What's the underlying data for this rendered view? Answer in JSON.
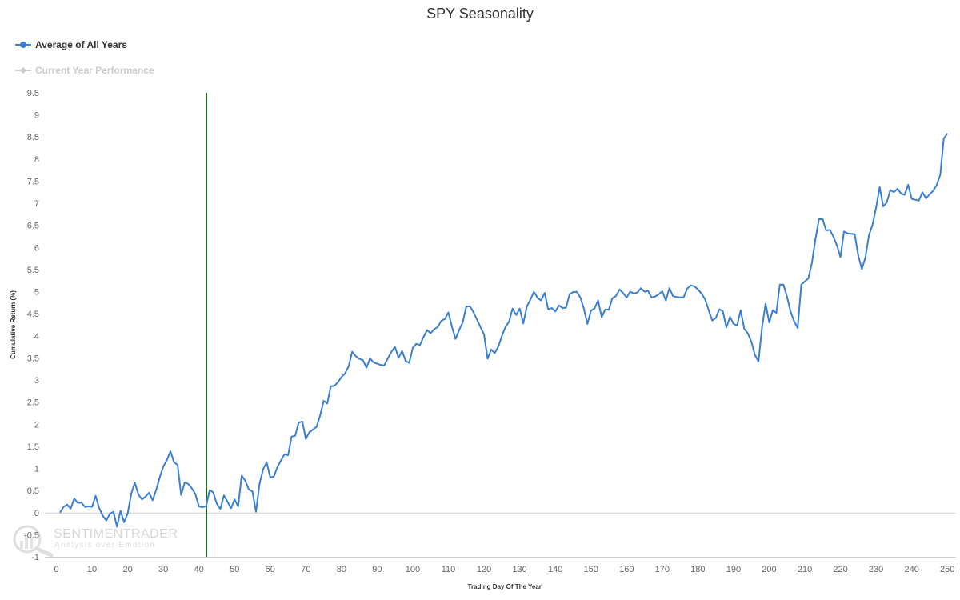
{
  "chart_data": {
    "type": "line",
    "title": "SPY Seasonality",
    "xlabel": "Trading Day Of The Year",
    "ylabel": "Cumulative Return (%)",
    "xlim": [
      0,
      252
    ],
    "ylim": [
      -1,
      9.5
    ],
    "x_ticks": [
      0,
      10,
      20,
      30,
      40,
      50,
      60,
      70,
      80,
      90,
      100,
      110,
      120,
      130,
      140,
      150,
      160,
      170,
      180,
      190,
      200,
      210,
      220,
      230,
      240,
      250
    ],
    "y_ticks": [
      -1,
      -0.5,
      0,
      0.5,
      1,
      1.5,
      2,
      2.5,
      3,
      3.5,
      4,
      4.5,
      5,
      5.5,
      6,
      6.5,
      7,
      7.5,
      8,
      8.5,
      9,
      9.5
    ],
    "y_tick_labels": [
      "-1",
      "-0.5",
      "0",
      "0.5",
      "1",
      "1.5",
      "2",
      "2.5",
      "3",
      "3.5",
      "4",
      "4.5",
      "5",
      "5.5",
      "6",
      "6.5",
      "7",
      "7.5",
      "8",
      "8.5",
      "9",
      "9.5"
    ],
    "current_day_marker": 42,
    "legend_placement": "top-left",
    "grid": false,
    "series": [
      {
        "name": "Average of All Years",
        "color": "#3a7fd0",
        "x_start": 1,
        "values": [
          0.0,
          0.13,
          0.18,
          0.09,
          0.32,
          0.22,
          0.23,
          0.13,
          0.14,
          0.13,
          0.38,
          0.1,
          -0.07,
          -0.18,
          -0.03,
          0.02,
          -0.32,
          0.04,
          -0.22,
          -0.02,
          0.43,
          0.68,
          0.41,
          0.3,
          0.36,
          0.45,
          0.28,
          0.51,
          0.8,
          1.04,
          1.19,
          1.39,
          1.14,
          1.08,
          0.4,
          0.68,
          0.65,
          0.55,
          0.42,
          0.14,
          0.12,
          0.15,
          0.51,
          0.46,
          0.2,
          0.08,
          0.39,
          0.25,
          0.1,
          0.3,
          0.14,
          0.84,
          0.72,
          0.52,
          0.48,
          0.02,
          0.65,
          0.98,
          1.14,
          0.8,
          0.81,
          1.03,
          1.18,
          1.32,
          1.3,
          1.72,
          1.74,
          2.04,
          2.06,
          1.67,
          1.82,
          1.88,
          1.94,
          2.2,
          2.53,
          2.47,
          2.86,
          2.87,
          2.95,
          3.07,
          3.15,
          3.31,
          3.64,
          3.54,
          3.48,
          3.45,
          3.28,
          3.49,
          3.4,
          3.37,
          3.34,
          3.33,
          3.49,
          3.64,
          3.75,
          3.5,
          3.66,
          3.43,
          3.39,
          3.73,
          3.82,
          3.79,
          3.97,
          4.13,
          4.06,
          4.15,
          4.2,
          4.34,
          4.38,
          4.53,
          4.2,
          3.93,
          4.13,
          4.3,
          4.66,
          4.67,
          4.54,
          4.37,
          4.2,
          4.03,
          3.48,
          3.69,
          3.61,
          3.76,
          4.0,
          4.2,
          4.32,
          4.62,
          4.47,
          4.62,
          4.28,
          4.66,
          4.82,
          5.0,
          4.86,
          4.8,
          4.97,
          4.6,
          4.63,
          4.55,
          4.69,
          4.63,
          4.64,
          4.94,
          4.99,
          5.0,
          4.87,
          4.62,
          4.27,
          4.57,
          4.62,
          4.8,
          4.42,
          4.6,
          4.59,
          4.85,
          4.9,
          5.05,
          4.97,
          4.87,
          5.0,
          4.96,
          4.98,
          5.08,
          5.0,
          5.02,
          4.87,
          4.89,
          4.94,
          5.01,
          4.8,
          5.08,
          4.9,
          4.88,
          4.87,
          4.87,
          5.07,
          5.14,
          5.12,
          5.05,
          4.96,
          4.83,
          4.59,
          4.35,
          4.4,
          4.6,
          4.56,
          4.19,
          4.43,
          4.27,
          4.24,
          4.58,
          4.16,
          4.06,
          3.87,
          3.57,
          3.42,
          4.2,
          4.73,
          4.3,
          4.58,
          4.52,
          5.16,
          5.16,
          4.89,
          4.55,
          4.33,
          4.18,
          5.16,
          5.23,
          5.3,
          5.65,
          6.2,
          6.65,
          6.64,
          6.38,
          6.4,
          6.25,
          6.05,
          5.78,
          6.36,
          6.32,
          6.31,
          6.3,
          5.82,
          5.51,
          5.77,
          6.28,
          6.51,
          6.9,
          7.37,
          6.93,
          7.02,
          7.3,
          7.25,
          7.33,
          7.22,
          7.19,
          7.42,
          7.1,
          7.08,
          7.06,
          7.25,
          7.11,
          7.2,
          7.28,
          7.41,
          7.64,
          8.46,
          8.58
        ]
      },
      {
        "name": "Current Year Performance",
        "color": "#cccccc",
        "values": []
      }
    ]
  },
  "legend": {
    "items": [
      {
        "label": "Average of All Years",
        "color": "#3a7fd0"
      },
      {
        "label": "Current Year Performance",
        "color": "#cccccc"
      }
    ]
  },
  "watermark": {
    "brand": "SENTIMENTRADER",
    "tagline": "Analysis over Emotion"
  }
}
